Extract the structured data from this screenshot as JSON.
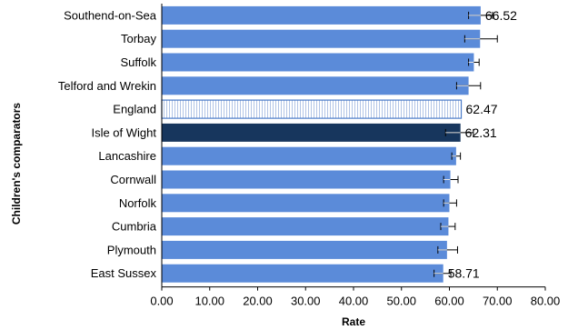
{
  "chart_data": {
    "type": "bar",
    "orientation": "horizontal",
    "title": "",
    "xlabel": "Rate",
    "ylabel": "Children's comparators",
    "xlim": [
      0,
      80
    ],
    "x_ticks": [
      "0.00",
      "10.00",
      "20.00",
      "30.00",
      "40.00",
      "50.00",
      "60.00",
      "70.00",
      "80.00"
    ],
    "grid": false,
    "legend": "none",
    "categories": [
      "Southend-on-Sea",
      "Torbay",
      "Suffolk",
      "Telford and Wrekin",
      "England",
      "Isle of Wight",
      "Lancashire",
      "Cornwall",
      "Norfolk",
      "Cumbria",
      "Plymouth",
      "East Sussex"
    ],
    "values": [
      66.52,
      66.4,
      65.1,
      64.0,
      62.47,
      62.31,
      61.4,
      60.2,
      60.0,
      59.8,
      59.5,
      58.71
    ],
    "error_low": [
      64.0,
      63.2,
      64.0,
      61.5,
      62.47,
      59.2,
      60.5,
      58.8,
      58.8,
      58.2,
      57.6,
      56.8
    ],
    "error_high": [
      69.0,
      70.0,
      66.2,
      66.5,
      62.47,
      65.0,
      62.3,
      61.8,
      61.5,
      61.2,
      61.7,
      60.3
    ],
    "data_labels": {
      "Southend-on-Sea": "66.52",
      "England": "62.47",
      "Isle of Wight": "62.31",
      "East Sussex": "58.71"
    },
    "colors": {
      "default": "#5b8bd9",
      "highlight": "#17365d",
      "england_stroke": "#4a7bc8",
      "england_fill": "#ffffff",
      "error_bar": "#000000"
    },
    "styles": {
      "England": "hatched-outline",
      "Isle of Wight": "highlight"
    }
  }
}
